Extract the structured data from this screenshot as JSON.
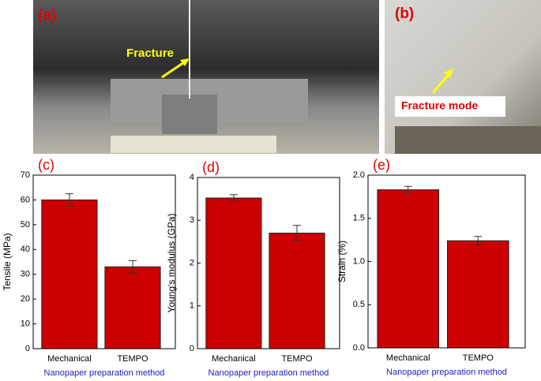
{
  "photos": [
    {
      "label": "(a)",
      "annotation": "Fracture"
    },
    {
      "label": "(b)",
      "annotation": "Fracture mode"
    }
  ],
  "chart_data": [
    {
      "type": "bar",
      "panel": "(c)",
      "ylabel": "Tensile (MPa)",
      "xlabel": "Nanopaper preparation method",
      "categories": [
        "Mechanical",
        "TEMPO"
      ],
      "values": [
        60,
        33
      ],
      "errors": [
        2.5,
        2.5
      ],
      "color": "#cc0000",
      "ylim": [
        0,
        70
      ],
      "yticks": [
        0,
        10,
        20,
        30,
        40,
        50,
        60,
        70
      ]
    },
    {
      "type": "bar",
      "panel": "(d)",
      "ylabel": "Young's modulus (GPa)",
      "xlabel": "Nanopaper preparation method",
      "categories": [
        "Mechanical",
        "TEMPO"
      ],
      "values": [
        3.52,
        2.7
      ],
      "errors": [
        0.08,
        0.18
      ],
      "color": "#cc0000",
      "ylim": [
        0,
        4
      ],
      "yticks": [
        0,
        1,
        2,
        3,
        4
      ]
    },
    {
      "type": "bar",
      "panel": "(e)",
      "ylabel": "Strain (%)",
      "xlabel": "Nanopaper preparation method",
      "categories": [
        "Mechanical",
        "TEMPO"
      ],
      "values": [
        1.83,
        1.24
      ],
      "errors": [
        0.04,
        0.05
      ],
      "color": "#cc0000",
      "ylim": [
        0,
        2.0
      ],
      "yticks": [
        {
          "value": 0,
          "label": "0.0"
        },
        0.5,
        {
          "value": 1,
          "label": "1.0"
        },
        1.5,
        {
          "value": 2,
          "label": "2.0"
        }
      ]
    }
  ]
}
